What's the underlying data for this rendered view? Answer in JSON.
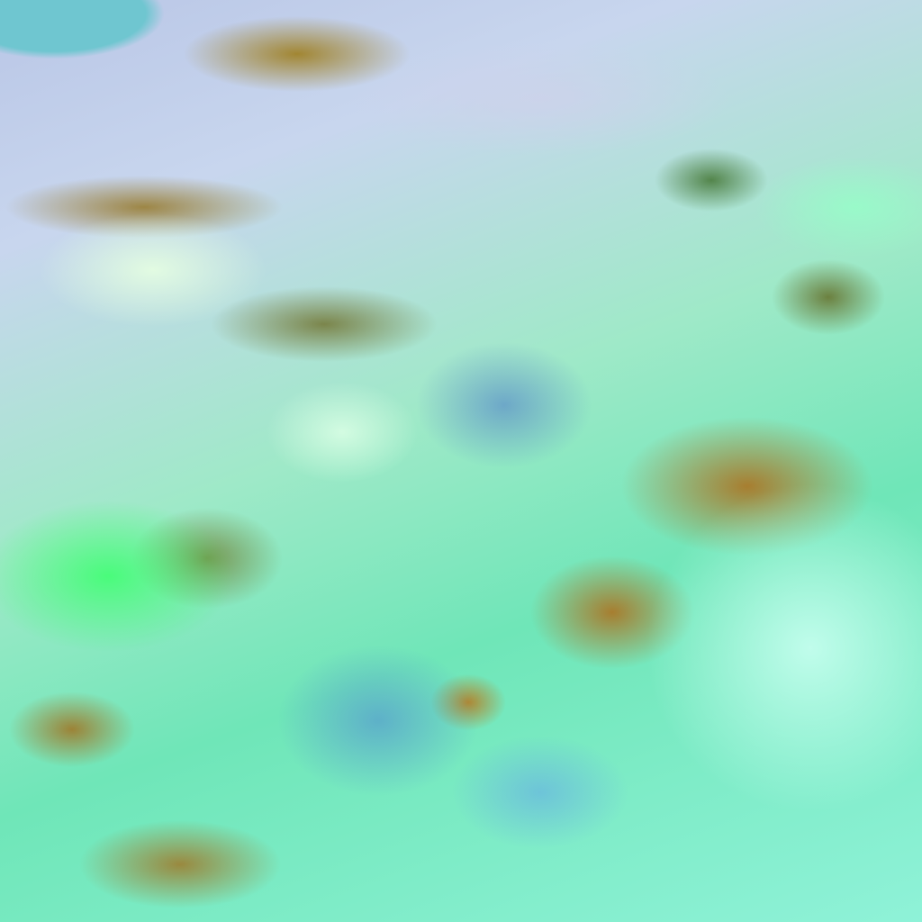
{
  "image": {
    "kind": "false-color satellite imagery",
    "colors": {
      "cloud_cyan": "#8ff2d8",
      "cloud_green": "#3cff6e",
      "cloud_lavender": "#c8d6ee",
      "land_brown": "#a0782a",
      "water_teal": "#6fc6d0"
    }
  }
}
